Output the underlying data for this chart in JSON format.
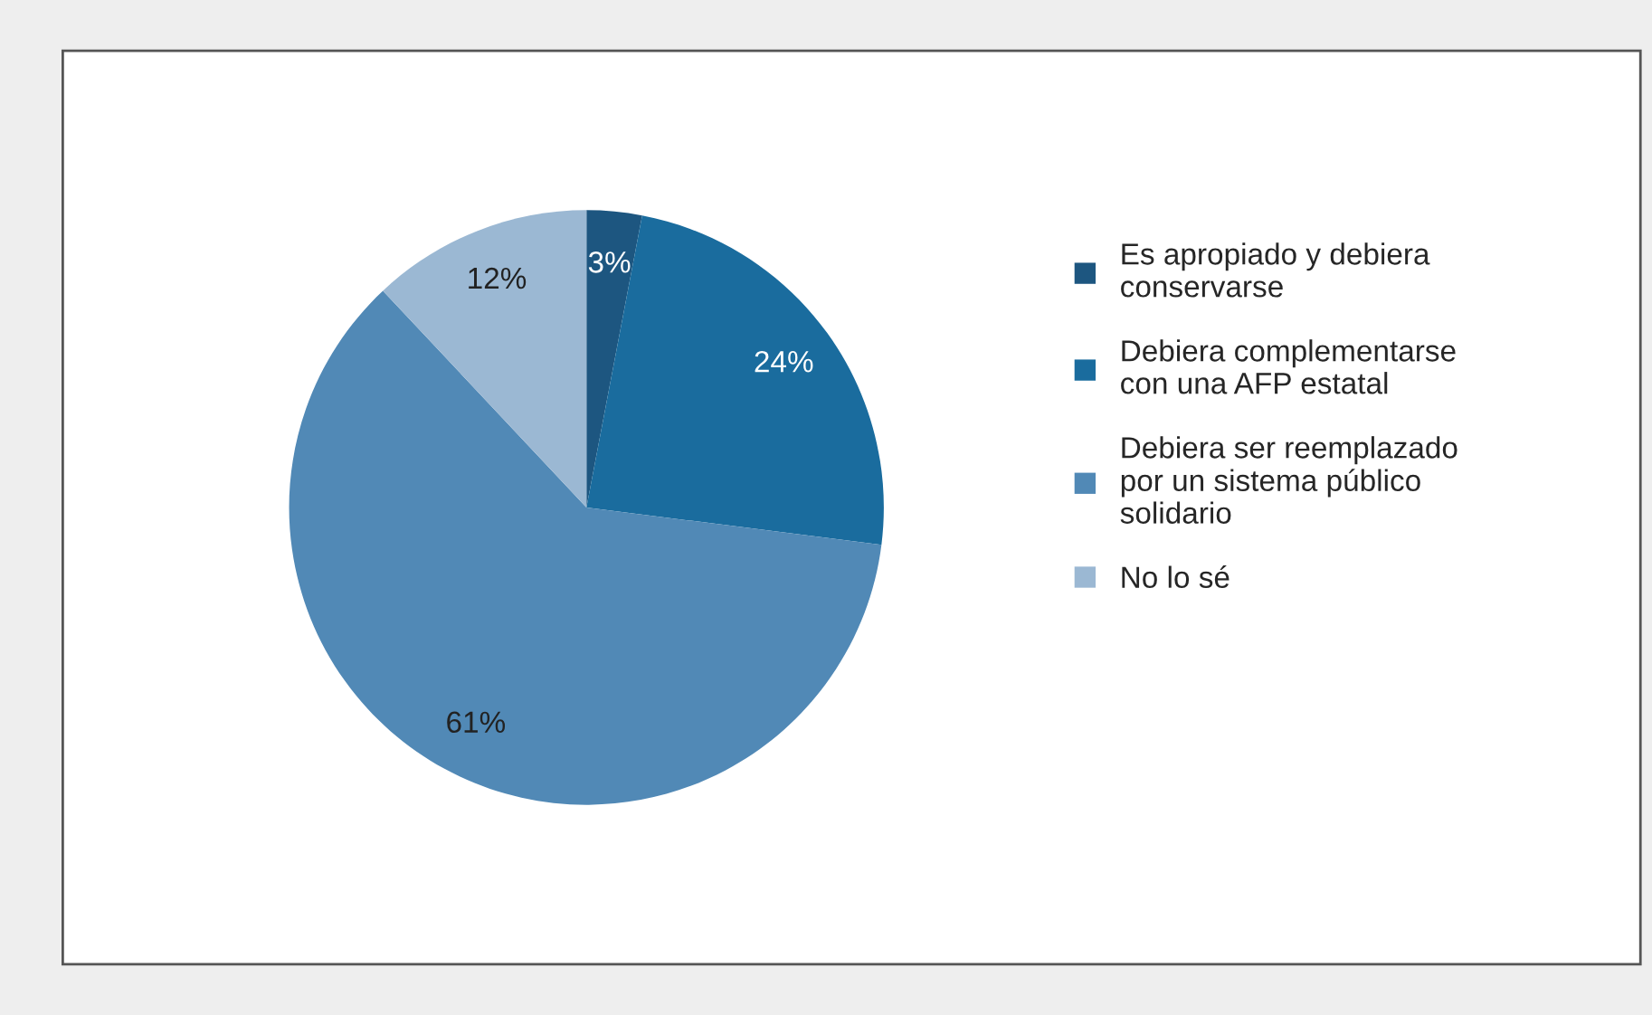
{
  "chart_data": {
    "type": "pie",
    "categories": [
      "Es apropiado y debiera conservarse",
      "Debiera complementarse con una AFP estatal",
      "Debiera ser reemplazado por un sistema público solidario",
      "No lo sé"
    ],
    "values": [
      3,
      24,
      61,
      12
    ],
    "colors": [
      "#1d5680",
      "#1a6c9e",
      "#5189b6",
      "#9bb8d3"
    ],
    "value_labels": [
      "3%",
      "24%",
      "61%",
      "12%"
    ],
    "legend": "right"
  }
}
